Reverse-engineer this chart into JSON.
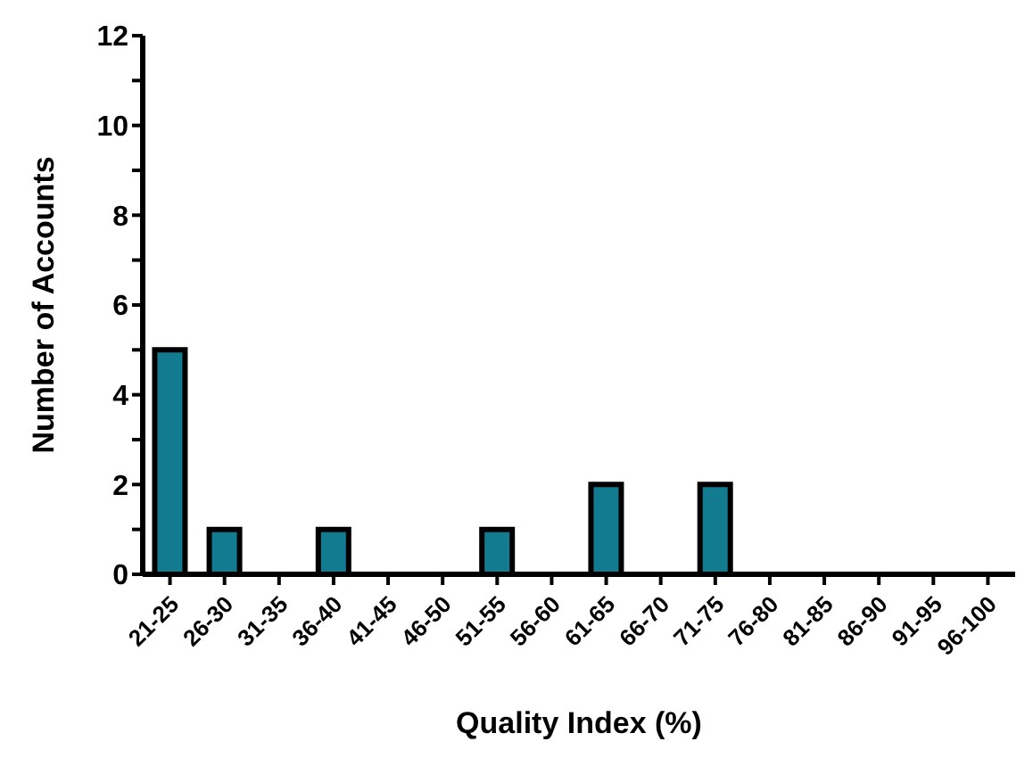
{
  "chart_data": {
    "type": "bar",
    "xlabel": "Quality Index (%)",
    "ylabel": "Number of Accounts",
    "categories": [
      "21-25",
      "26-30",
      "31-35",
      "36-40",
      "41-45",
      "46-50",
      "51-55",
      "56-60",
      "61-65",
      "66-70",
      "71-75",
      "76-80",
      "81-85",
      "86-90",
      "91-95",
      "96-100"
    ],
    "values": [
      5,
      1,
      0,
      1,
      0,
      0,
      1,
      0,
      2,
      0,
      2,
      0,
      0,
      0,
      0,
      0
    ],
    "color": "#137b8f",
    "ylim": [
      0,
      12
    ],
    "yticks": [
      0,
      {
        "value": 1,
        "label": null
      },
      2,
      {
        "value": 3,
        "label": null
      },
      4,
      {
        "value": 5,
        "label": null
      },
      6,
      {
        "value": 7,
        "label": null
      },
      8,
      {
        "value": 9,
        "label": null
      },
      10,
      {
        "value": 11,
        "label": null
      },
      12
    ],
    "grid": false
  }
}
